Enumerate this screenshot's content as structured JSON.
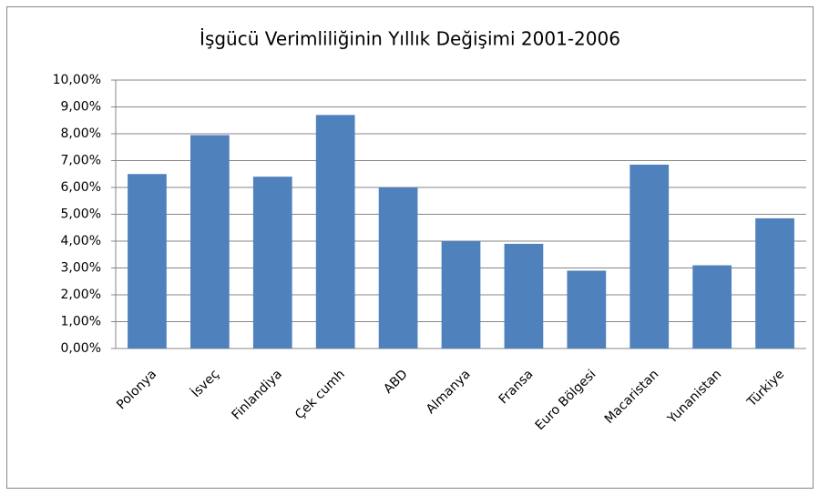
{
  "chart_data": {
    "type": "bar",
    "title": "İşgücü Verimliliğinin Yıllık Değişimi 2001-2006",
    "categories": [
      "Polonya",
      "İsveç",
      "Finlandiya",
      "Çek cumh",
      "ABD",
      "Almanya",
      "Fransa",
      "Euro Bölgesi",
      "Macaristan",
      "Yunanistan",
      "Türkiye"
    ],
    "values": [
      6.5,
      7.95,
      6.4,
      8.7,
      6.0,
      4.0,
      3.9,
      2.9,
      6.85,
      3.1,
      4.85
    ],
    "color": "#4f81bd",
    "ylim": [
      0,
      10
    ],
    "yticks": [
      {
        "value": 0,
        "label": "0,00%"
      },
      {
        "value": 1,
        "label": "1,00%"
      },
      {
        "value": 2,
        "label": "2,00%"
      },
      {
        "value": 3,
        "label": "3,00%"
      },
      {
        "value": 4,
        "label": "4,00%"
      },
      {
        "value": 5,
        "label": "5,00%"
      },
      {
        "value": 6,
        "label": "6,00%"
      },
      {
        "value": 7,
        "label": "7,00%"
      },
      {
        "value": 8,
        "label": "8,00%"
      },
      {
        "value": 9,
        "label": "9,00%"
      },
      {
        "value": 10,
        "label": "10,00%"
      }
    ],
    "grid": true
  }
}
